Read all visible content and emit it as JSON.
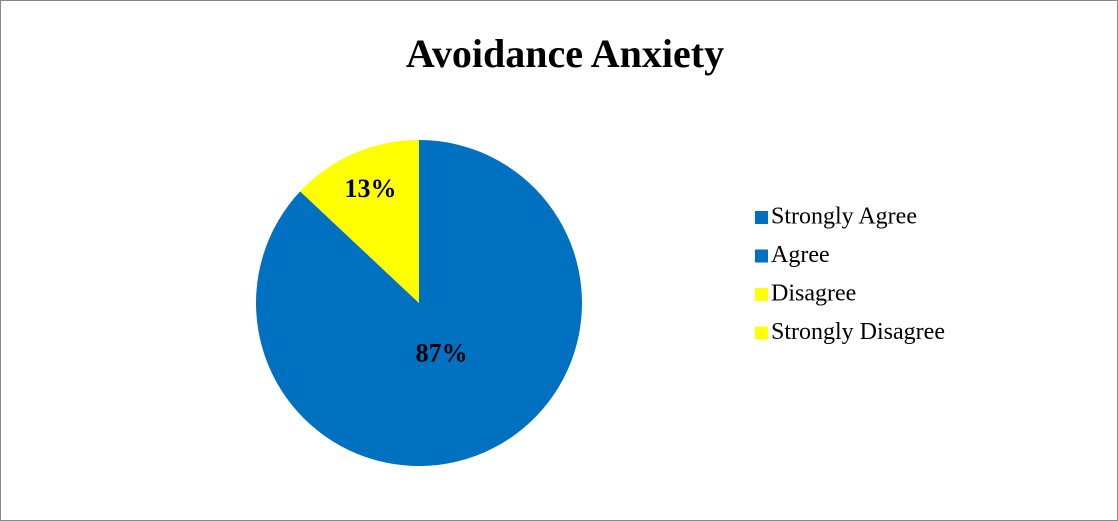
{
  "chart_data": {
    "type": "pie",
    "title": "Avoidance Anxiety",
    "categories": [
      "Strongly Agree",
      "Agree",
      "Disagree",
      "Strongly Disagree"
    ],
    "values": [
      0,
      87,
      13,
      0
    ],
    "value_labels": [
      null,
      "87%",
      "13%",
      null
    ],
    "colors": [
      "#0070c0",
      "#0070c0",
      "#ffff00",
      "#ffff00"
    ],
    "legend": "right"
  }
}
